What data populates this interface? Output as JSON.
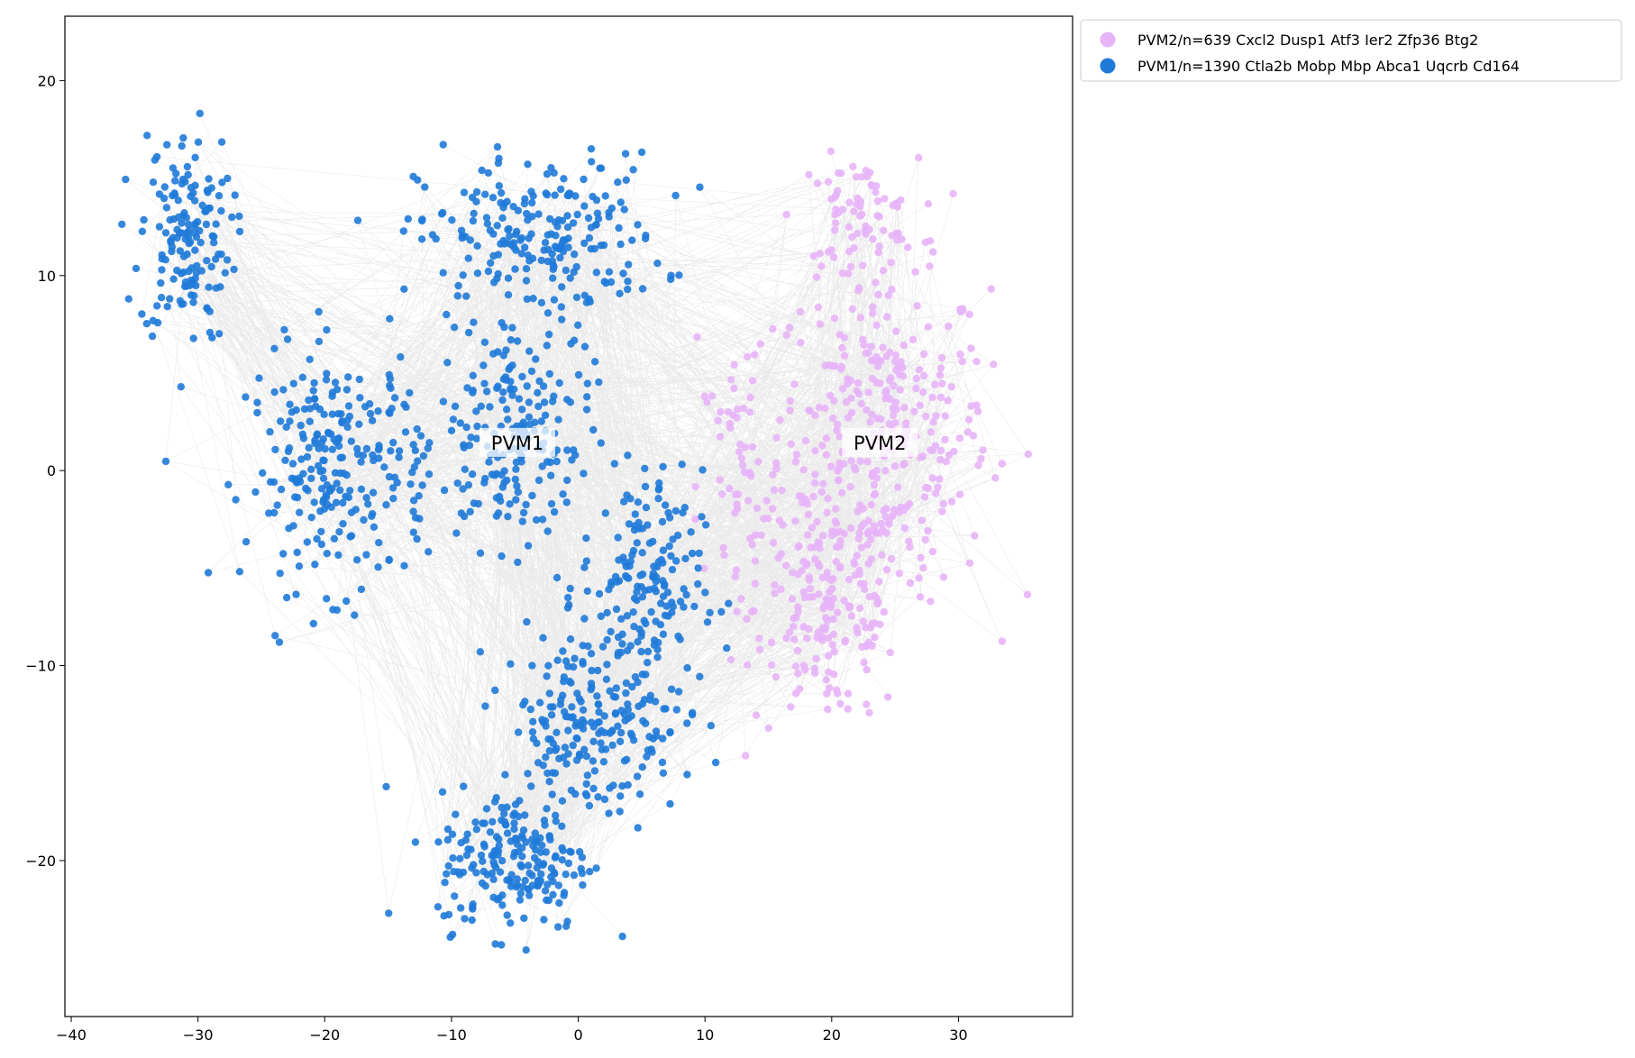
{
  "chart_data": {
    "type": "scatter",
    "title": "",
    "xlabel": "",
    "ylabel": "",
    "xlim": [
      -40.5,
      39
    ],
    "ylim": [
      -28,
      23.3
    ],
    "xticks": [
      -40,
      -30,
      -20,
      -10,
      0,
      10,
      20,
      30
    ],
    "yticks": [
      -20,
      -10,
      0,
      10,
      20
    ],
    "grid": false,
    "edges_shown": true,
    "legend": {
      "placement": "outside-top-right",
      "entries": [
        {
          "label": "PVM2/n=639 Cxcl2 Dusp1 Atf3 Ier2 Zfp36 Btg2",
          "color": "#e8b4f8"
        },
        {
          "label": "PVM1/n=1390 Ctla2b Mobp Mbp Abca1 Uqcrb Cd164",
          "color": "#1f7ad8"
        }
      ]
    },
    "series": [
      {
        "name": "PVM2",
        "n": 639,
        "color": "#e8b4f8",
        "centroid": [
          23.8,
          1.4
        ],
        "label": "PVM2",
        "regions": [
          {
            "center": [
              24,
              2
            ],
            "spread": [
              7,
              7
            ],
            "share": 0.5
          },
          {
            "center": [
              20,
              -7
            ],
            "spread": [
              5,
              5
            ],
            "share": 0.28
          },
          {
            "center": [
              22,
              13
            ],
            "spread": [
              4,
              2.5
            ],
            "share": 0.12
          },
          {
            "center": [
              13,
              -1
            ],
            "spread": [
              3,
              7
            ],
            "share": 0.1
          }
        ]
      },
      {
        "name": "PVM1",
        "n": 1390,
        "color": "#1f7ad8",
        "centroid": [
          -4.8,
          1.4
        ],
        "label": "PVM1",
        "regions": [
          {
            "center": [
              -31,
              12
            ],
            "spread": [
              3,
              4.5
            ],
            "share": 0.11
          },
          {
            "center": [
              -3,
              12
            ],
            "spread": [
              8,
              3.5
            ],
            "share": 0.16
          },
          {
            "center": [
              -19,
              0
            ],
            "spread": [
              6,
              5
            ],
            "share": 0.18
          },
          {
            "center": [
              -5,
              2
            ],
            "spread": [
              5,
              5
            ],
            "share": 0.14
          },
          {
            "center": [
              5,
              -6
            ],
            "spread": [
              4,
              5
            ],
            "share": 0.12
          },
          {
            "center": [
              -5,
              -20
            ],
            "spread": [
              5,
              3
            ],
            "share": 0.14
          },
          {
            "center": [
              1,
              -13
            ],
            "spread": [
              6,
              4
            ],
            "share": 0.15
          }
        ]
      }
    ]
  }
}
